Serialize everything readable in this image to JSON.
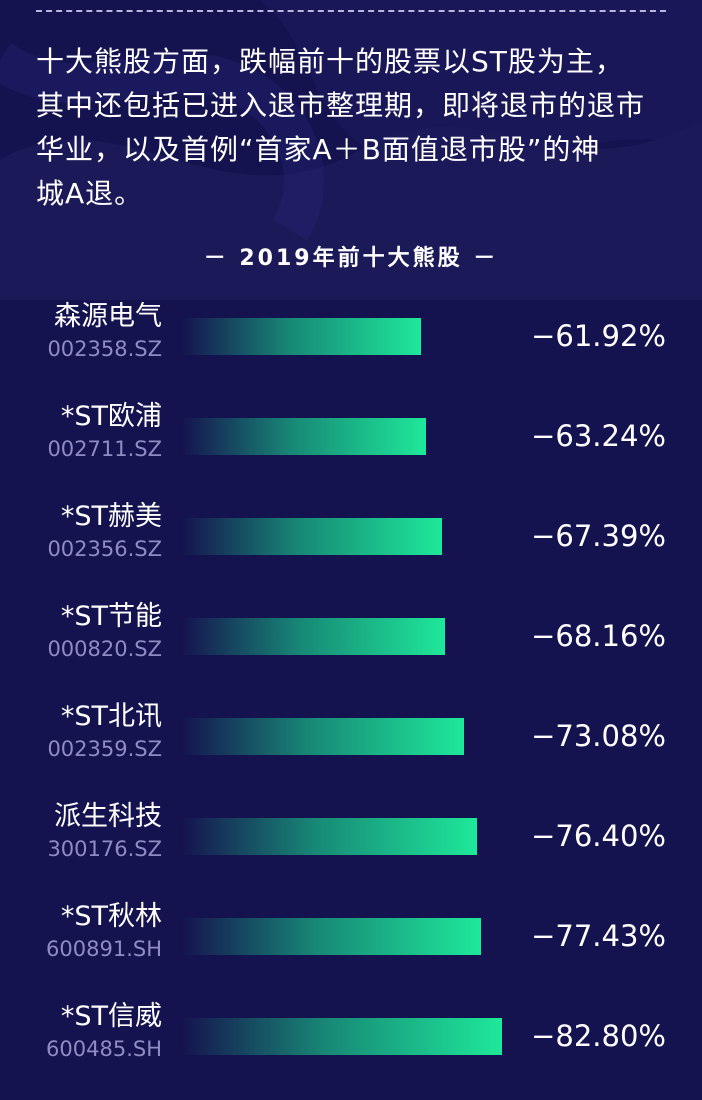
{
  "intro_lines": [
    "十大熊股方面，跌幅前十的股票以ST股为主，",
    "其中还包括已进入退市整理期，即将退市的退市",
    "华业，以及首例“首家A＋B面值退市股”的神",
    "城A退。"
  ],
  "colors": {
    "background": "#15134f",
    "bar_end": "#1ee89a",
    "code_text": "#8f8cc4"
  },
  "chart_data": {
    "type": "bar",
    "title": "－ 2019年前十大熊股 －",
    "orientation": "horizontal",
    "xlim": [
      0,
      100
    ],
    "categories": [
      "森源电气",
      "*ST欧浦",
      "*ST赫美",
      "*ST节能",
      "*ST北讯",
      "派生科技",
      "*ST秋林",
      "*ST信威"
    ],
    "codes": [
      "002358.SZ",
      "002711.SZ",
      "002356.SZ",
      "000820.SZ",
      "002359.SZ",
      "300176.SZ",
      "600891.SH",
      "600485.SH"
    ],
    "values": [
      -61.92,
      -63.24,
      -67.39,
      -68.16,
      -73.08,
      -76.4,
      -77.43,
      -82.8
    ],
    "value_labels": [
      "−61.92%",
      "−63.24%",
      "−67.39%",
      "−68.16%",
      "−73.08%",
      "−76.40%",
      "−77.43%",
      "−82.80%"
    ]
  }
}
